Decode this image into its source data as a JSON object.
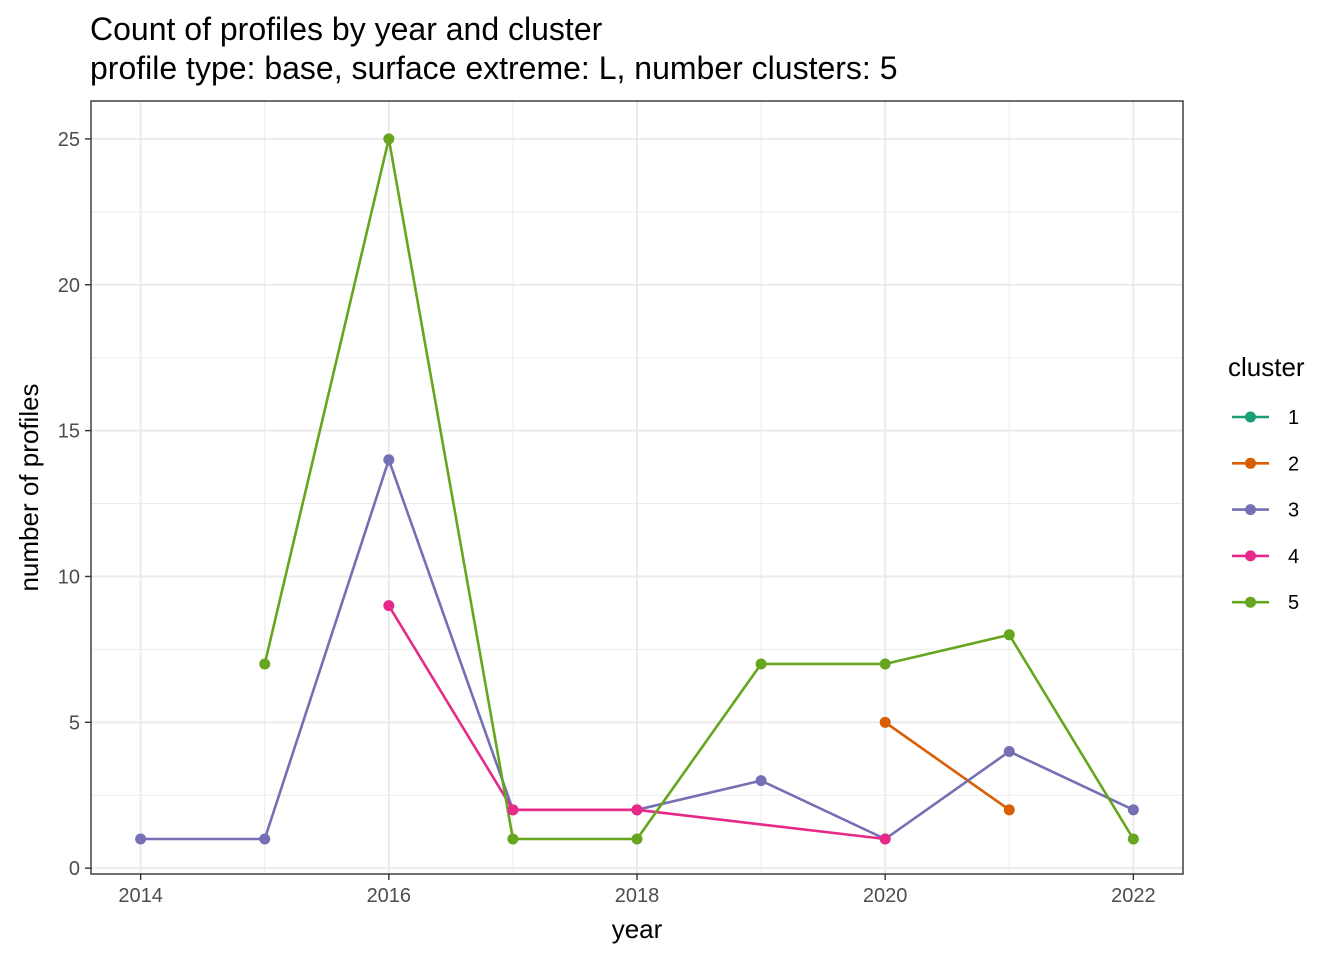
{
  "chart_data": {
    "type": "line",
    "title": "Count of profiles by year and cluster",
    "subtitle": "profile type: base, surface extreme: L, number clusters: 5",
    "xlabel": "year",
    "ylabel": "number of profiles",
    "xlim": [
      2013.6,
      2022.4
    ],
    "ylim": [
      -0.2,
      26.3
    ],
    "x_ticks": [
      2014,
      2016,
      2018,
      2020,
      2022
    ],
    "y_ticks": [
      0,
      5,
      10,
      15,
      20,
      25
    ],
    "grid": true,
    "legend": {
      "title": "cluster",
      "position": "right"
    },
    "series": [
      {
        "name": "1",
        "color": "#1B9E77",
        "points": []
      },
      {
        "name": "2",
        "color": "#D95F02",
        "points": [
          [
            2020,
            5
          ],
          [
            2021,
            2
          ]
        ]
      },
      {
        "name": "3",
        "color": "#7570B3",
        "points": [
          [
            2014,
            1
          ],
          [
            2015,
            1
          ],
          [
            2016,
            14
          ],
          [
            2017,
            2
          ],
          [
            2018,
            2
          ],
          [
            2019,
            3
          ],
          [
            2020,
            1
          ],
          [
            2021,
            4
          ],
          [
            2022,
            2
          ]
        ]
      },
      {
        "name": "4",
        "color": "#E7298A",
        "points": [
          [
            2016,
            9
          ],
          [
            2017,
            2
          ],
          [
            2018,
            2
          ],
          [
            2020,
            1
          ]
        ]
      },
      {
        "name": "5",
        "color": "#66A61E",
        "points": [
          [
            2015,
            7
          ],
          [
            2016,
            25
          ],
          [
            2017,
            1
          ],
          [
            2018,
            1
          ],
          [
            2019,
            7
          ],
          [
            2020,
            7
          ],
          [
            2021,
            8
          ],
          [
            2022,
            1
          ]
        ]
      }
    ]
  }
}
